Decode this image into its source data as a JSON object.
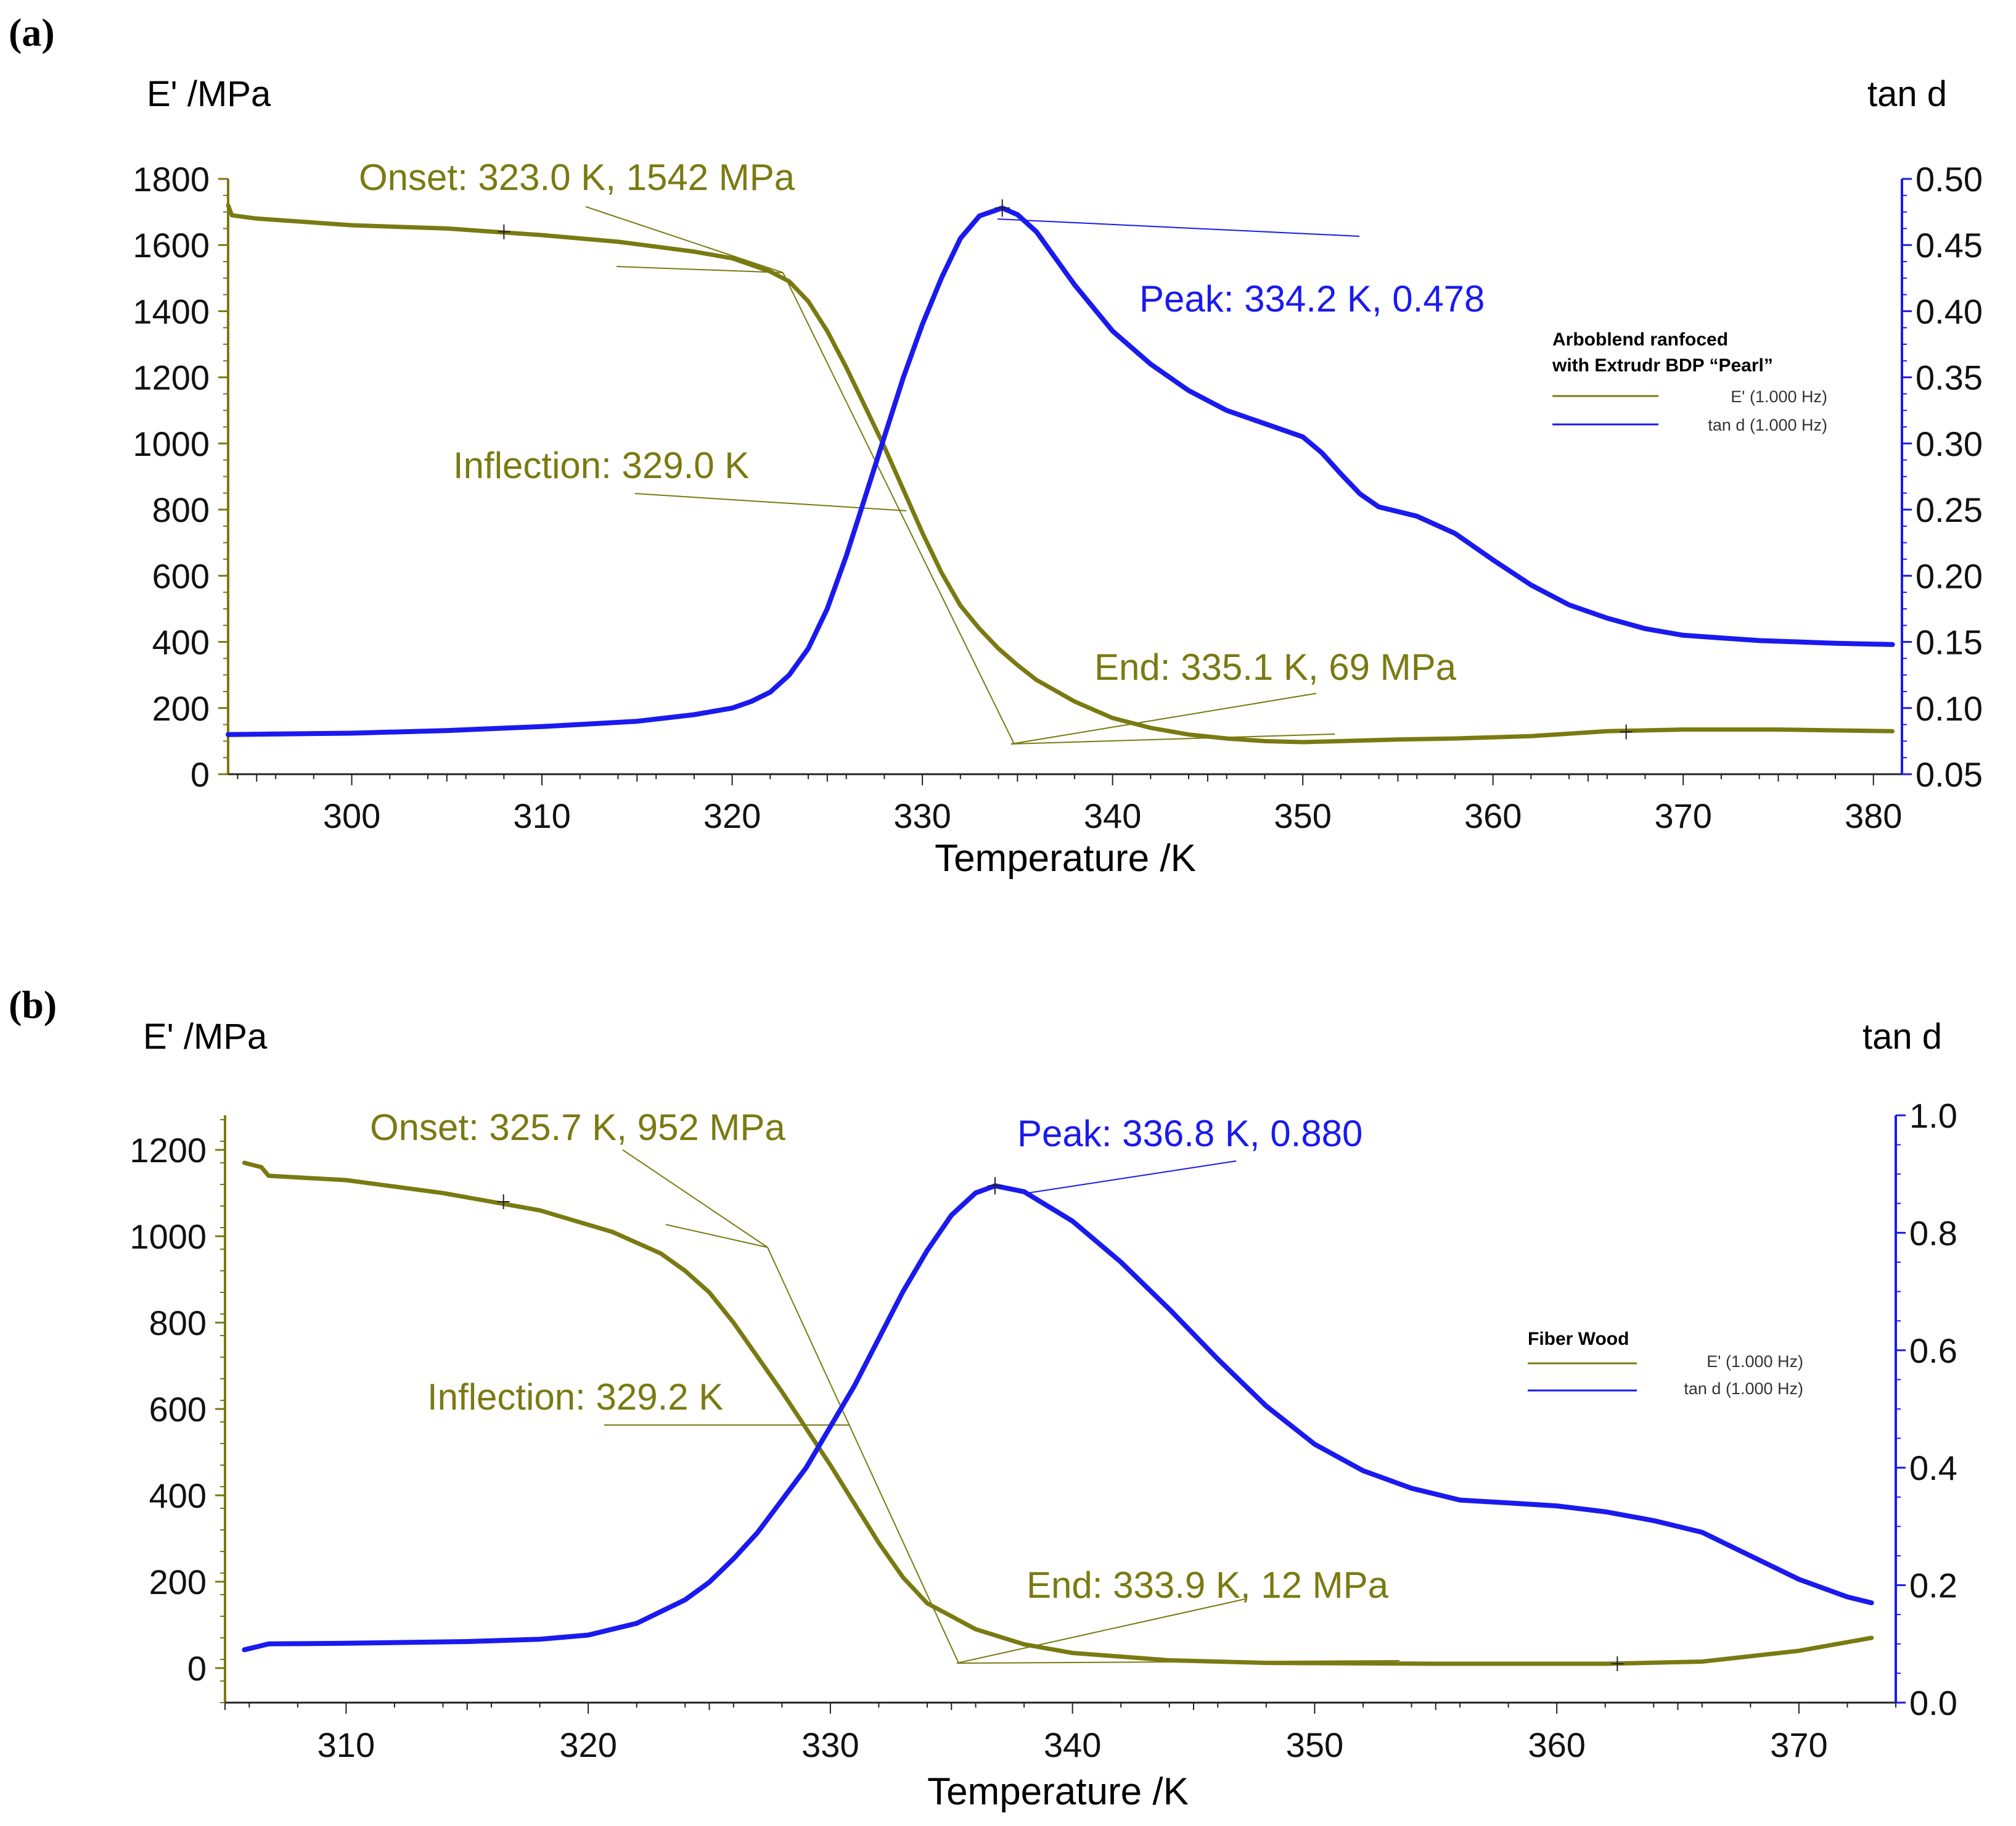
{
  "chart_data": [
    {
      "panel": "(a)",
      "type": "line",
      "xlabel": "Temperature /K",
      "ylabel_left": "E' /MPa",
      "ylabel_right": "tan d",
      "xlim": [
        293.5,
        381.5
      ],
      "xticks": [
        300,
        310,
        320,
        330,
        340,
        350,
        360,
        370,
        380
      ],
      "ylim_left": [
        0,
        1800
      ],
      "yticks_left": [
        0,
        200,
        400,
        600,
        800,
        1000,
        1200,
        1400,
        1600,
        1800
      ],
      "ylim_right": [
        0.05,
        0.5
      ],
      "yticks_right": [
        0.05,
        0.1,
        0.15,
        0.2,
        0.25,
        0.3,
        0.35,
        0.4,
        0.45,
        0.5
      ],
      "yticks_right_labels": [
        "0.05",
        "0.10",
        "0.15",
        "0.20",
        "0.25",
        "0.30",
        "0.35",
        "0.40",
        "0.45",
        "0.50"
      ],
      "legend": {
        "title_lines": [
          "Arboblend ranfoced",
          "with Extrudr BDP “Pearl”"
        ],
        "entries": [
          "E' (1.000 Hz)",
          "tan d (1.000 Hz)"
        ],
        "placement": "right"
      },
      "series": [
        {
          "name": "E' (1.000 Hz)",
          "axis": "left",
          "color": "#7a7a12",
          "x": [
            293.5,
            293.7,
            295,
            300,
            305,
            310,
            314,
            318,
            320,
            322,
            323,
            324,
            325,
            326,
            327,
            328,
            329,
            330,
            331,
            332,
            333,
            334,
            335,
            336,
            338,
            340,
            342,
            344,
            346,
            348,
            350,
            352,
            355,
            358,
            362,
            366,
            370,
            375,
            381
          ],
          "y": [
            1720,
            1690,
            1680,
            1660,
            1650,
            1630,
            1610,
            1580,
            1560,
            1520,
            1490,
            1430,
            1340,
            1230,
            1110,
            990,
            860,
            730,
            610,
            510,
            440,
            380,
            330,
            285,
            220,
            170,
            140,
            120,
            108,
            100,
            97,
            100,
            105,
            108,
            115,
            130,
            135,
            135,
            130
          ]
        },
        {
          "name": "tan d (1.000 Hz)",
          "axis": "right",
          "color": "#1a1aee",
          "x": [
            293.5,
            300,
            305,
            310,
            315,
            318,
            320,
            321,
            322,
            323,
            324,
            325,
            326,
            327,
            328,
            329,
            330,
            331,
            332,
            333,
            334.2,
            335,
            336,
            337,
            338,
            340,
            342,
            344,
            346,
            348,
            350,
            351,
            352,
            353,
            354,
            356,
            358,
            360,
            362,
            364,
            366,
            368,
            370,
            374,
            378,
            381
          ],
          "y": [
            0.08,
            0.081,
            0.083,
            0.086,
            0.09,
            0.095,
            0.1,
            0.105,
            0.112,
            0.125,
            0.145,
            0.175,
            0.215,
            0.26,
            0.305,
            0.35,
            0.39,
            0.425,
            0.455,
            0.472,
            0.478,
            0.473,
            0.46,
            0.44,
            0.42,
            0.385,
            0.36,
            0.34,
            0.325,
            0.315,
            0.305,
            0.293,
            0.277,
            0.262,
            0.252,
            0.245,
            0.232,
            0.212,
            0.193,
            0.178,
            0.168,
            0.16,
            0.155,
            0.151,
            0.149,
            0.148
          ]
        }
      ],
      "annotations": [
        {
          "kind": "onset",
          "text": "Onset: 323.0 K, 1542 MPa",
          "x": 323.0,
          "y": 1542,
          "axis": "left"
        },
        {
          "kind": "inflection",
          "text": "Inflection: 329.0 K",
          "x": 329.0,
          "y": 800,
          "axis": "left"
        },
        {
          "kind": "end",
          "text": "End: 335.1 K, 69 MPa",
          "x": 335.1,
          "y": 69,
          "axis": "left"
        },
        {
          "kind": "peak",
          "text": "Peak: 334.2 K, 0.478",
          "x": 334.2,
          "y": 0.478,
          "axis": "right"
        }
      ],
      "markers": [
        {
          "x": 308,
          "y": 1640,
          "axis": "left"
        },
        {
          "x": 367,
          "y": 128,
          "axis": "left"
        }
      ]
    },
    {
      "panel": "(b)",
      "type": "line",
      "xlabel": "Temperature /K",
      "ylabel_left": "E' /MPa",
      "ylabel_right": "tan d",
      "xlim": [
        305,
        374
      ],
      "xticks": [
        310,
        320,
        330,
        340,
        350,
        360,
        370
      ],
      "ylim_left": [
        -80,
        1280
      ],
      "yticks_left": [
        0,
        200,
        400,
        600,
        800,
        1000,
        1200
      ],
      "ylim_right": [
        0.0,
        1.0
      ],
      "yticks_right": [
        0.0,
        0.2,
        0.4,
        0.6,
        0.8,
        1.0
      ],
      "yticks_right_labels": [
        "0.0",
        "0.2",
        "0.4",
        "0.6",
        "0.8",
        "1.0"
      ],
      "legend": {
        "title_lines": [
          "Fiber Wood"
        ],
        "entries": [
          "E' (1.000 Hz)",
          "tan d (1.000 Hz)"
        ],
        "placement": "right"
      },
      "series": [
        {
          "name": "E' (1.000 Hz)",
          "axis": "left",
          "color": "#7a7a12",
          "x": [
            305.8,
            306.5,
            306.8,
            310,
            314,
            318,
            321,
            323,
            324,
            325,
            326,
            327,
            328,
            329,
            330,
            331,
            332,
            333,
            334,
            336,
            338,
            340,
            344,
            348,
            355,
            362,
            366,
            370,
            373
          ],
          "y": [
            1170,
            1160,
            1140,
            1130,
            1100,
            1060,
            1010,
            960,
            920,
            870,
            800,
            720,
            640,
            555,
            470,
            380,
            290,
            210,
            150,
            90,
            55,
            35,
            18,
            12,
            10,
            10,
            15,
            40,
            70
          ]
        },
        {
          "name": "tan d (1.000 Hz)",
          "axis": "right",
          "color": "#1a1aee",
          "x": [
            305.8,
            306.3,
            306.8,
            310,
            315,
            318,
            320,
            322,
            324,
            325,
            326,
            327,
            328,
            329,
            330,
            331,
            332,
            333,
            334,
            335,
            336,
            336.8,
            338,
            340,
            342,
            344,
            346,
            348,
            350,
            352,
            354,
            356,
            358,
            360,
            362,
            364,
            366,
            368,
            370,
            372,
            373
          ],
          "y": [
            0.09,
            0.095,
            0.1,
            0.101,
            0.104,
            0.108,
            0.115,
            0.135,
            0.175,
            0.205,
            0.245,
            0.29,
            0.345,
            0.4,
            0.47,
            0.54,
            0.62,
            0.7,
            0.77,
            0.83,
            0.868,
            0.88,
            0.87,
            0.82,
            0.75,
            0.67,
            0.585,
            0.505,
            0.44,
            0.395,
            0.365,
            0.345,
            0.34,
            0.335,
            0.325,
            0.31,
            0.29,
            0.25,
            0.21,
            0.18,
            0.17
          ]
        }
      ],
      "annotations": [
        {
          "kind": "onset",
          "text": "Onset: 325.7 K, 952 MPa",
          "x": 325.7,
          "y": 952,
          "axis": "left"
        },
        {
          "kind": "inflection",
          "text": "Inflection: 329.2 K",
          "x": 329.2,
          "y": 555,
          "axis": "left"
        },
        {
          "kind": "end",
          "text": "End: 333.9 K, 12 MPa",
          "x": 333.9,
          "y": 12,
          "axis": "left"
        },
        {
          "kind": "peak",
          "text": "Peak: 336.8 K, 0.880",
          "x": 336.8,
          "y": 0.88,
          "axis": "right"
        }
      ],
      "markers": [
        {
          "x": 316.5,
          "y": 1080,
          "axis": "left"
        },
        {
          "x": 362.5,
          "y": 10,
          "axis": "left"
        }
      ]
    }
  ]
}
